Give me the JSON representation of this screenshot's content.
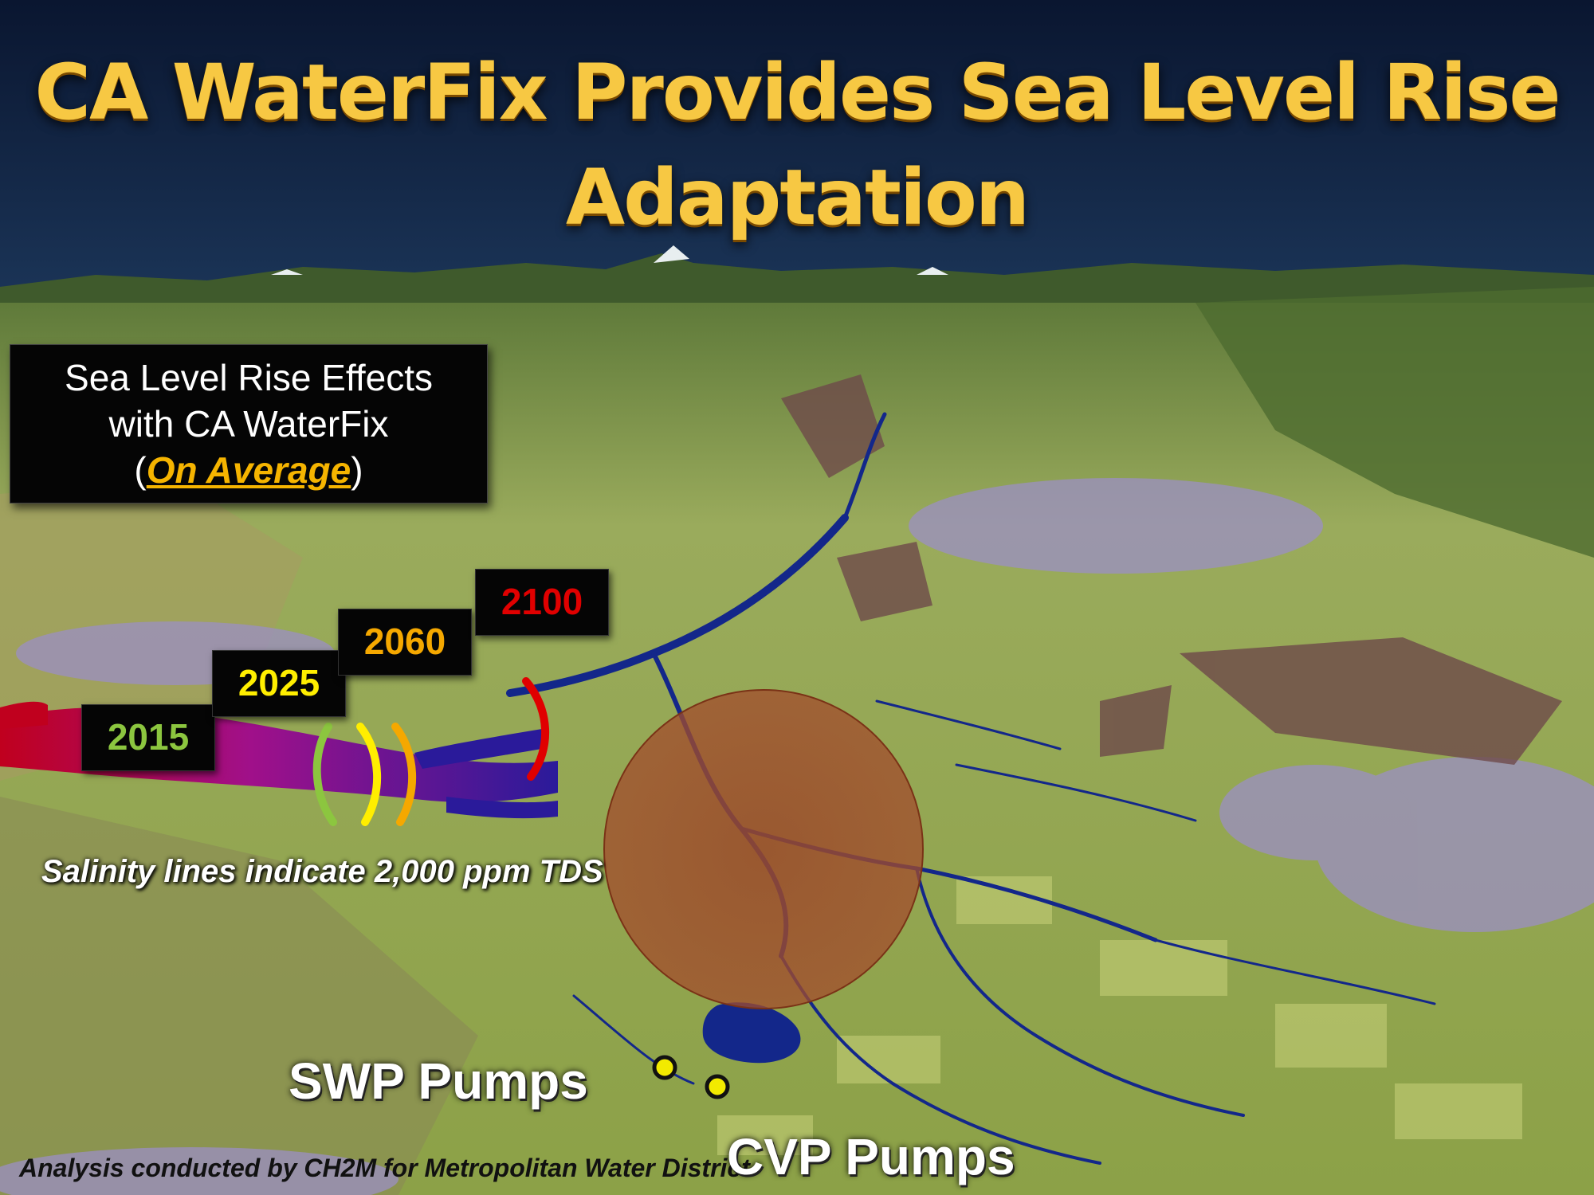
{
  "title": {
    "line1": "CA WaterFix Provides Sea Level Rise",
    "line2": "Adaptation"
  },
  "infobox": {
    "line1": "Sea Level Rise Effects",
    "line2": "with CA WaterFix",
    "paren_open": "(",
    "emphasis": "On Average",
    "paren_close": ")"
  },
  "salinity_years": [
    {
      "label": "2015",
      "color": "#8cc63f"
    },
    {
      "label": "2025",
      "color": "#ffee00"
    },
    {
      "label": "2060",
      "color": "#f5a800"
    },
    {
      "label": "2100",
      "color": "#e00000"
    }
  ],
  "note": "Salinity lines indicate 2,000 ppm TDS",
  "pumps": {
    "swp": "SWP Pumps",
    "cvp": "CVP Pumps"
  },
  "credit": "Analysis conducted by CH2M for Metropolitan Water District",
  "colors": {
    "title": "#f7c843",
    "sky": "#0b1a33",
    "land": "#8fa84a",
    "water": "#13278a",
    "urban": "#9b8fc4",
    "zone": "#a0482c",
    "pump_marker": "#f2ea00"
  }
}
